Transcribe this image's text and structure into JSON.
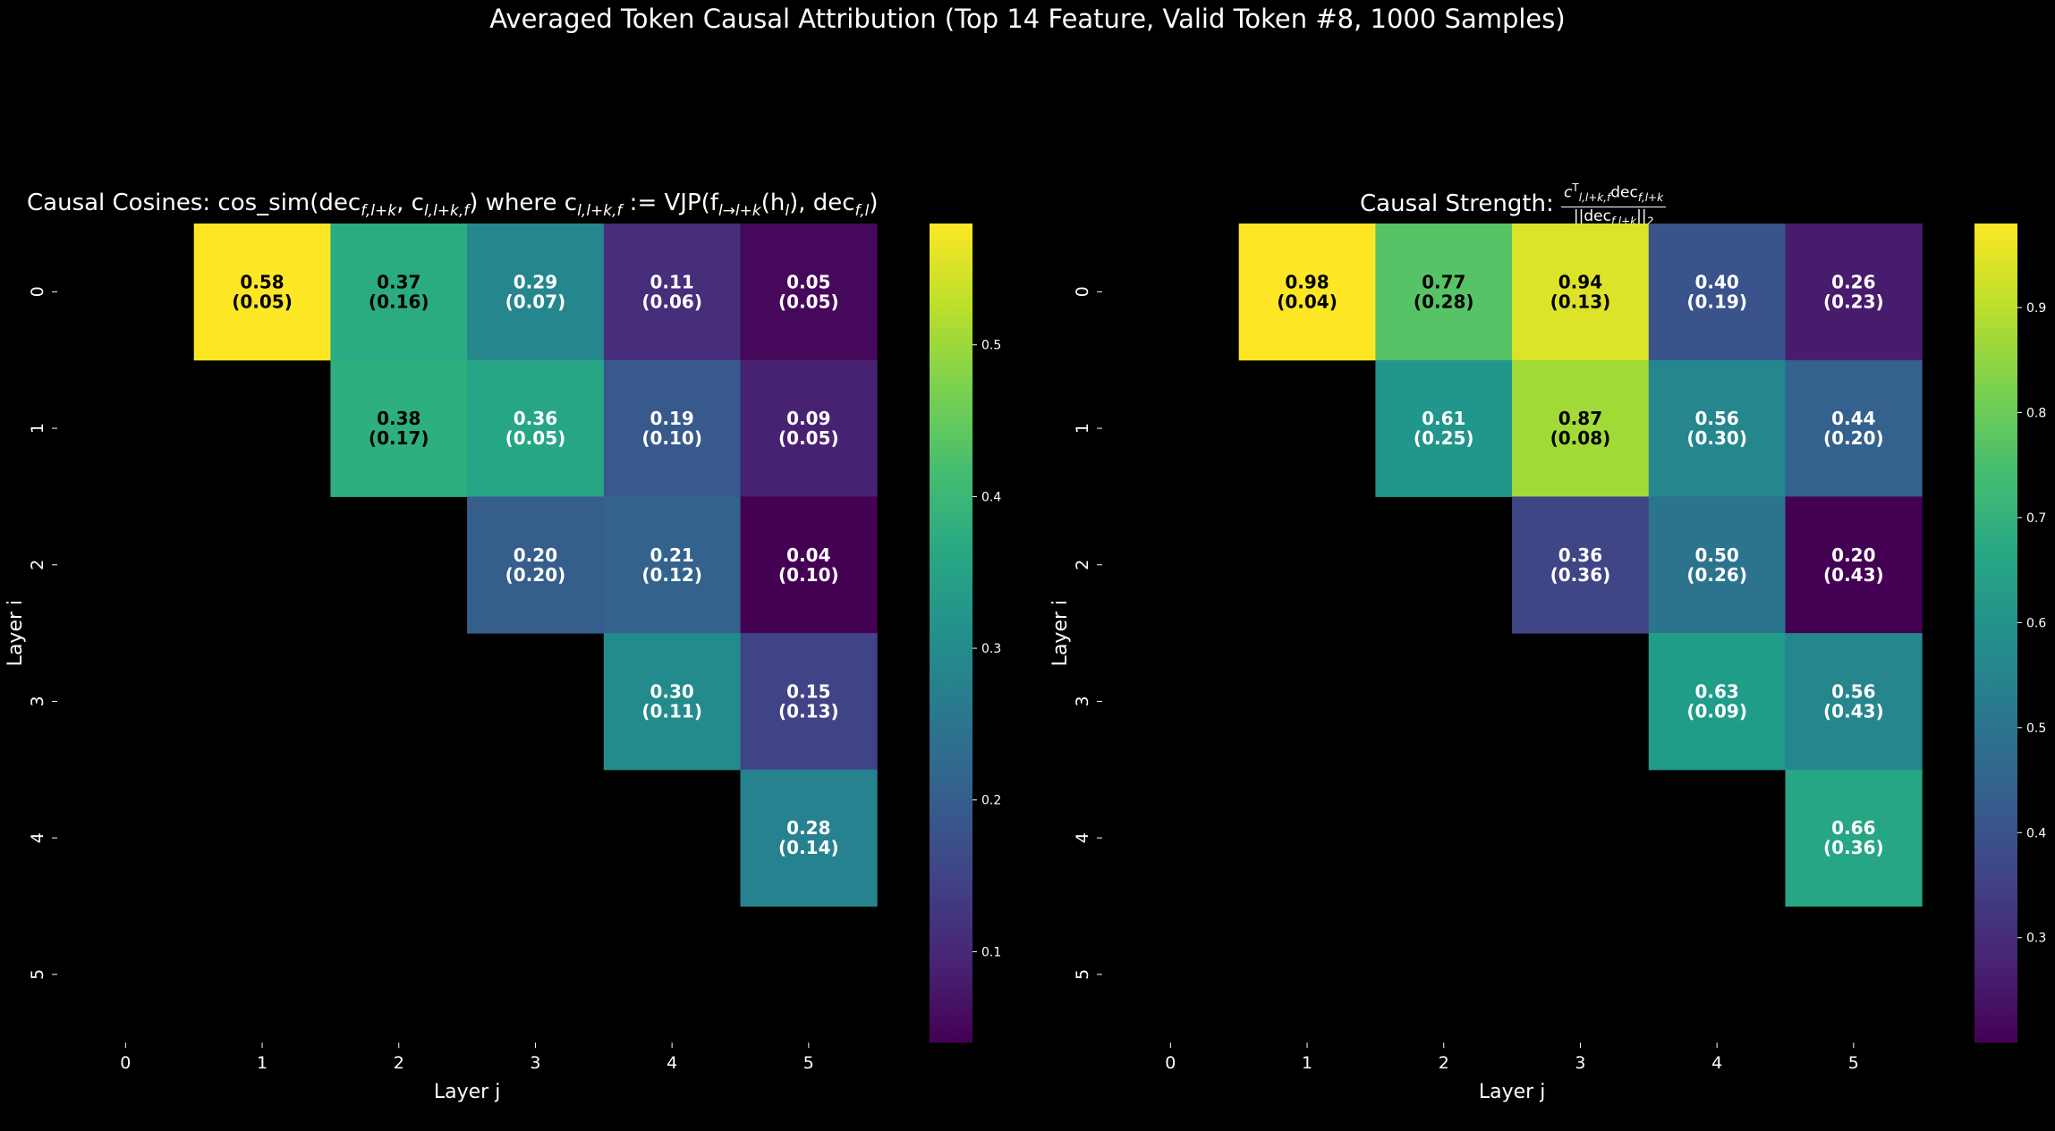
{
  "suptitle": "Averaged Token Causal Attribution (Top 14 Feature, Valid Token #8, 1000 Samples)",
  "colormap": "viridis",
  "background": "#000000",
  "chart_data": [
    {
      "type": "heatmap",
      "title": "Causal Cosines: cos_sim(dec_{f,l+k}, c_{l,l+k,f}) where c_{l,l+k,f} := VJP(f_{l→l+k}(h_l), dec_{f,l})",
      "title_parts": {
        "lead": "Causal Cosines: cos_sim(dec",
        "sub1": "f,l+k",
        "mid1": ", c",
        "sub2": "l,l+k,f",
        "mid2": ") where c",
        "sub3": "l,l+k,f",
        "mid3": " := VJP(f",
        "sub4": "l→l+k",
        "mid4": "(h",
        "sub5": "l",
        "mid5": "), dec",
        "sub6": "f,l",
        "tail": ")"
      },
      "xlabel": "Layer j",
      "ylabel": "Layer i",
      "x_ticks": [
        "0",
        "1",
        "2",
        "3",
        "4",
        "5"
      ],
      "y_ticks": [
        "0",
        "1",
        "2",
        "3",
        "4",
        "5"
      ],
      "color_range": [
        0.04,
        0.58
      ],
      "colorbar_ticks": [
        "0.1",
        "0.2",
        "0.3",
        "0.4",
        "0.5"
      ],
      "colorbar_tick_values": [
        0.1,
        0.2,
        0.3,
        0.4,
        0.5
      ],
      "cells": [
        {
          "i": 0,
          "j": 1,
          "value": 0.58,
          "std": 0.05,
          "label": "0.58",
          "std_label": "(0.05)"
        },
        {
          "i": 0,
          "j": 2,
          "value": 0.37,
          "std": 0.16,
          "label": "0.37",
          "std_label": "(0.16)"
        },
        {
          "i": 0,
          "j": 3,
          "value": 0.29,
          "std": 0.07,
          "label": "0.29",
          "std_label": "(0.07)"
        },
        {
          "i": 0,
          "j": 4,
          "value": 0.11,
          "std": 0.06,
          "label": "0.11",
          "std_label": "(0.06)"
        },
        {
          "i": 0,
          "j": 5,
          "value": 0.05,
          "std": 0.05,
          "label": "0.05",
          "std_label": "(0.05)"
        },
        {
          "i": 1,
          "j": 2,
          "value": 0.38,
          "std": 0.17,
          "label": "0.38",
          "std_label": "(0.17)"
        },
        {
          "i": 1,
          "j": 3,
          "value": 0.36,
          "std": 0.05,
          "label": "0.36",
          "std_label": "(0.05)"
        },
        {
          "i": 1,
          "j": 4,
          "value": 0.19,
          "std": 0.1,
          "label": "0.19",
          "std_label": "(0.10)"
        },
        {
          "i": 1,
          "j": 5,
          "value": 0.09,
          "std": 0.05,
          "label": "0.09",
          "std_label": "(0.05)"
        },
        {
          "i": 2,
          "j": 3,
          "value": 0.2,
          "std": 0.2,
          "label": "0.20",
          "std_label": "(0.20)"
        },
        {
          "i": 2,
          "j": 4,
          "value": 0.21,
          "std": 0.12,
          "label": "0.21",
          "std_label": "(0.12)"
        },
        {
          "i": 2,
          "j": 5,
          "value": 0.04,
          "std": 0.1,
          "label": "0.04",
          "std_label": "(0.10)"
        },
        {
          "i": 3,
          "j": 4,
          "value": 0.3,
          "std": 0.11,
          "label": "0.30",
          "std_label": "(0.11)"
        },
        {
          "i": 3,
          "j": 5,
          "value": 0.15,
          "std": 0.13,
          "label": "0.15",
          "std_label": "(0.13)"
        },
        {
          "i": 4,
          "j": 5,
          "value": 0.28,
          "std": 0.14,
          "label": "0.28",
          "std_label": "(0.14)"
        }
      ]
    },
    {
      "type": "heatmap",
      "title": "Causal Strength: c^T_{l,l+k,f} dec_{f,l+k} / ||dec_{f,l+k}||_2",
      "title_parts": {
        "lead": "Causal Strength: ",
        "num_c": "c",
        "num_sup": "T",
        "num_sub": "l,l+k,f",
        "num_dec": "dec",
        "num_dec_sub": "f,l+k",
        "den_l": "||dec",
        "den_sub": "f,l+k",
        "den_r": "||",
        "den_2": "2"
      },
      "xlabel": "Layer j",
      "ylabel": "Layer i",
      "x_ticks": [
        "0",
        "1",
        "2",
        "3",
        "4",
        "5"
      ],
      "y_ticks": [
        "0",
        "1",
        "2",
        "3",
        "4",
        "5"
      ],
      "color_range": [
        0.2,
        0.98
      ],
      "colorbar_ticks": [
        "0.3",
        "0.4",
        "0.5",
        "0.6",
        "0.7",
        "0.8",
        "0.9"
      ],
      "colorbar_tick_values": [
        0.3,
        0.4,
        0.5,
        0.6,
        0.7,
        0.8,
        0.9
      ],
      "cells": [
        {
          "i": 0,
          "j": 1,
          "value": 0.98,
          "std": 0.04,
          "label": "0.98",
          "std_label": "(0.04)"
        },
        {
          "i": 0,
          "j": 2,
          "value": 0.77,
          "std": 0.28,
          "label": "0.77",
          "std_label": "(0.28)"
        },
        {
          "i": 0,
          "j": 3,
          "value": 0.94,
          "std": 0.13,
          "label": "0.94",
          "std_label": "(0.13)"
        },
        {
          "i": 0,
          "j": 4,
          "value": 0.4,
          "std": 0.19,
          "label": "0.40",
          "std_label": "(0.19)"
        },
        {
          "i": 0,
          "j": 5,
          "value": 0.26,
          "std": 0.23,
          "label": "0.26",
          "std_label": "(0.23)"
        },
        {
          "i": 1,
          "j": 2,
          "value": 0.61,
          "std": 0.25,
          "label": "0.61",
          "std_label": "(0.25)"
        },
        {
          "i": 1,
          "j": 3,
          "value": 0.87,
          "std": 0.08,
          "label": "0.87",
          "std_label": "(0.08)"
        },
        {
          "i": 1,
          "j": 4,
          "value": 0.56,
          "std": 0.3,
          "label": "0.56",
          "std_label": "(0.30)"
        },
        {
          "i": 1,
          "j": 5,
          "value": 0.44,
          "std": 0.2,
          "label": "0.44",
          "std_label": "(0.20)"
        },
        {
          "i": 2,
          "j": 3,
          "value": 0.36,
          "std": 0.36,
          "label": "0.36",
          "std_label": "(0.36)"
        },
        {
          "i": 2,
          "j": 4,
          "value": 0.5,
          "std": 0.26,
          "label": "0.50",
          "std_label": "(0.26)"
        },
        {
          "i": 2,
          "j": 5,
          "value": 0.2,
          "std": 0.43,
          "label": "0.20",
          "std_label": "(0.43)"
        },
        {
          "i": 3,
          "j": 4,
          "value": 0.63,
          "std": 0.09,
          "label": "0.63",
          "std_label": "(0.09)"
        },
        {
          "i": 3,
          "j": 5,
          "value": 0.56,
          "std": 0.43,
          "label": "0.56",
          "std_label": "(0.43)"
        },
        {
          "i": 4,
          "j": 5,
          "value": 0.66,
          "std": 0.36,
          "label": "0.66",
          "std_label": "(0.36)"
        }
      ]
    }
  ]
}
